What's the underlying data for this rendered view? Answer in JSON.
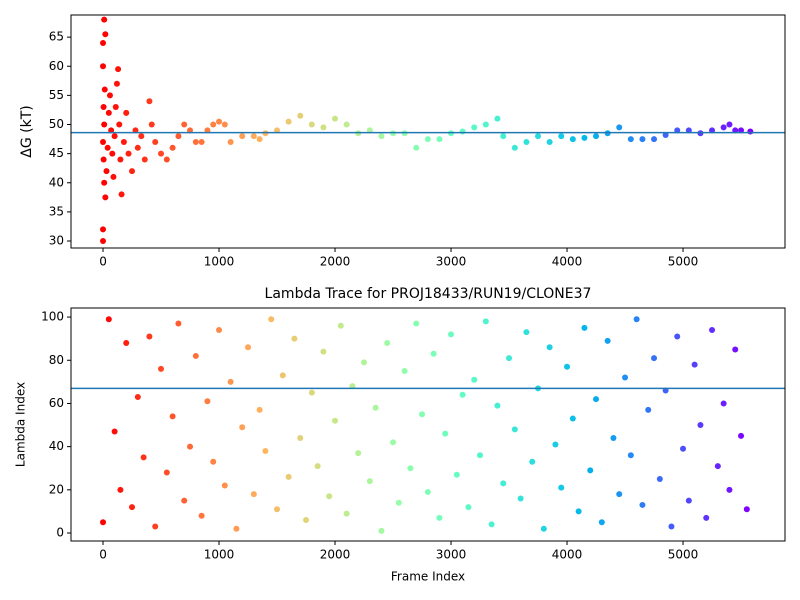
{
  "chart_data": [
    {
      "type": "scatter",
      "ylabel": "ΔG (kT)",
      "colormap": "rainbow_r",
      "x": [
        0,
        0,
        0,
        10,
        20,
        0,
        15,
        5,
        10,
        0,
        5,
        10,
        20,
        30,
        40,
        50,
        60,
        70,
        80,
        90,
        100,
        110,
        120,
        130,
        140,
        150,
        160,
        180,
        200,
        220,
        250,
        280,
        300,
        330,
        360,
        400,
        420,
        450,
        500,
        550,
        600,
        650,
        700,
        750,
        800,
        850,
        900,
        950,
        1000,
        1050,
        1100,
        1200,
        1300,
        1350,
        1400,
        1500,
        1600,
        1700,
        1800,
        1900,
        2000,
        2100,
        2200,
        2300,
        2400,
        2500,
        2600,
        2700,
        2800,
        2900,
        3000,
        3100,
        3200,
        3300,
        3400,
        3450,
        3550,
        3650,
        3750,
        3850,
        3950,
        4050,
        4150,
        4250,
        4350,
        4450,
        4550,
        4650,
        4750,
        4850,
        4950,
        5050,
        5150,
        5250,
        5350,
        5400,
        5450,
        5500,
        5580
      ],
      "y": [
        30,
        32,
        64,
        68,
        65.5,
        60,
        56,
        53,
        50,
        47,
        44,
        40,
        37.5,
        42,
        46,
        52,
        55,
        49,
        45,
        41,
        48,
        53,
        57,
        59.5,
        50,
        44,
        38,
        47,
        52,
        45,
        42,
        49,
        46,
        48,
        44,
        54,
        50,
        47,
        45,
        44,
        46,
        48,
        50,
        49,
        47,
        47,
        49,
        50,
        50.5,
        50,
        47,
        48,
        48,
        47.5,
        48.5,
        49,
        50.5,
        51.5,
        50,
        49.5,
        51,
        50,
        48.5,
        49,
        48,
        48.5,
        48.5,
        46,
        47.5,
        47.5,
        48.5,
        48.8,
        49.5,
        50,
        51,
        48,
        46,
        47,
        48,
        47,
        48,
        47.5,
        47.7,
        48,
        48.5,
        49.5,
        47.5,
        47.5,
        47.5,
        48.2,
        49,
        49,
        48.5,
        49,
        49.5,
        50,
        49,
        49,
        48.8
      ],
      "hline": 48.6,
      "hline_color": "#1f77b4",
      "xlim": [
        -276,
        5879
      ],
      "xticks": [
        0,
        1000,
        2000,
        3000,
        4000,
        5000
      ],
      "ylim": [
        28.8,
        68.8
      ],
      "yticks": [
        30,
        35,
        40,
        45,
        50,
        55,
        60,
        65
      ]
    },
    {
      "type": "scatter",
      "title": "Lambda Trace for PROJ18433/RUN19/CLONE37",
      "xlabel": "Frame Index",
      "ylabel": "Lambda Index",
      "colormap": "rainbow_r",
      "x": [
        0,
        50,
        100,
        150,
        200,
        250,
        300,
        350,
        400,
        450,
        500,
        550,
        600,
        650,
        700,
        750,
        800,
        850,
        900,
        950,
        1000,
        1050,
        1100,
        1150,
        1200,
        1250,
        1300,
        1350,
        1400,
        1450,
        1500,
        1550,
        1600,
        1650,
        1700,
        1750,
        1800,
        1850,
        1900,
        1950,
        2000,
        2050,
        2100,
        2150,
        2200,
        2250,
        2300,
        2350,
        2400,
        2450,
        2500,
        2550,
        2600,
        2650,
        2700,
        2750,
        2800,
        2850,
        2900,
        2950,
        3000,
        3050,
        3100,
        3150,
        3200,
        3250,
        3300,
        3350,
        3400,
        3450,
        3500,
        3550,
        3600,
        3650,
        3700,
        3750,
        3800,
        3850,
        3900,
        3950,
        4000,
        4050,
        4100,
        4150,
        4200,
        4250,
        4300,
        4350,
        4400,
        4450,
        4500,
        4550,
        4600,
        4650,
        4700,
        4750,
        4800,
        4850,
        4900,
        4950,
        5000,
        5050,
        5100,
        5150,
        5200,
        5250,
        5300,
        5350,
        5400,
        5450,
        5500,
        5550
      ],
      "y": [
        5,
        99,
        47,
        20,
        88,
        12,
        63,
        35,
        91,
        3,
        76,
        28,
        54,
        97,
        15,
        40,
        82,
        8,
        61,
        33,
        94,
        22,
        70,
        2,
        49,
        86,
        18,
        57,
        38,
        99,
        11,
        73,
        26,
        90,
        44,
        6,
        65,
        31,
        84,
        17,
        52,
        96,
        9,
        68,
        37,
        79,
        24,
        58,
        1,
        88,
        42,
        14,
        75,
        30,
        97,
        55,
        19,
        83,
        7,
        46,
        92,
        27,
        64,
        12,
        71,
        36,
        98,
        4,
        59,
        23,
        81,
        48,
        16,
        93,
        33,
        67,
        2,
        86,
        41,
        21,
        77,
        53,
        10,
        95,
        29,
        62,
        5,
        89,
        44,
        18,
        72,
        36,
        99,
        13,
        57,
        81,
        25,
        66,
        3,
        91,
        39,
        15,
        78,
        50,
        7,
        94,
        31,
        60,
        20,
        85,
        45,
        11
      ],
      "hline": 67,
      "hline_color": "#1f77b4",
      "xlim": [
        -276,
        5879
      ],
      "xticks": [
        0,
        1000,
        2000,
        3000,
        4000,
        5000
      ],
      "ylim": [
        -3.7,
        104.2
      ],
      "yticks": [
        0,
        20,
        40,
        60,
        80,
        100
      ]
    }
  ]
}
